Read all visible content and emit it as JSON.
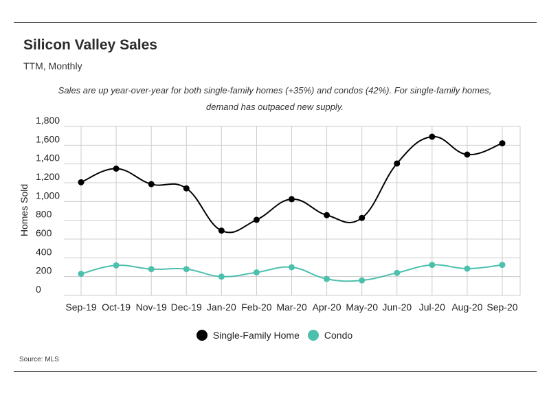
{
  "header": {
    "title": "Silicon Valley Sales",
    "subtitle": "TTM, Monthly",
    "note": "Sales are up year-over-year for both single-family homes (+35%) and condos (42%). For single-family homes, demand has outpaced new supply."
  },
  "footer": {
    "source": "Source:  MLS"
  },
  "colors": {
    "single_family": "#000000",
    "condo": "#4dbfad",
    "grid": "#cccccc",
    "rule": "#222222"
  },
  "chart_data": {
    "type": "line",
    "title": "Silicon Valley Sales",
    "subtitle": "TTM, Monthly",
    "xlabel": "",
    "ylabel": "Homes Sold",
    "ylim": [
      0,
      1800
    ],
    "yticks": [
      0,
      200,
      400,
      600,
      800,
      1000,
      1200,
      1400,
      1600,
      1800
    ],
    "ytick_labels": [
      "0",
      "200",
      "400",
      "600",
      "800",
      "1,000",
      "1,200",
      "1,400",
      "1,600",
      "1,800"
    ],
    "grid": true,
    "legend_position": "bottom",
    "categories": [
      "Sep-19",
      "Oct-19",
      "Nov-19",
      "Dec-19",
      "Jan-20",
      "Feb-20",
      "Mar-20",
      "Apr-20",
      "May-20",
      "Jun-20",
      "Jul-20",
      "Aug-20",
      "Sep-20"
    ],
    "series": [
      {
        "name": "Single-Family Home",
        "color": "#000000",
        "values": [
          1205,
          1350,
          1185,
          1140,
          690,
          805,
          1025,
          855,
          825,
          1405,
          1690,
          1500,
          1620
        ]
      },
      {
        "name": "Condo",
        "color": "#4dbfad",
        "values": [
          230,
          320,
          280,
          280,
          200,
          245,
          300,
          175,
          160,
          240,
          325,
          285,
          325
        ]
      }
    ]
  }
}
